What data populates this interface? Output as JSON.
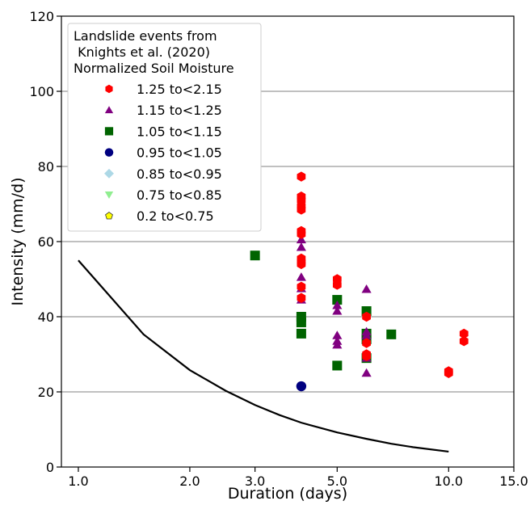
{
  "chart_data": {
    "type": "scatter",
    "xlabel": "Duration (days)",
    "ylabel": "Intensity (mm/d)",
    "x_scale": "log",
    "xlim": [
      0.9,
      15.0
    ],
    "ylim": [
      0,
      120
    ],
    "x_ticks": [
      1.0,
      2.0,
      3.0,
      5.0,
      10.0,
      15.0
    ],
    "x_tick_labels": [
      "1.0",
      "2.0",
      "3.0",
      "5.0",
      "10.0",
      "15.0"
    ],
    "y_ticks": [
      0,
      20,
      40,
      60,
      80,
      100,
      120
    ],
    "y_tick_labels": [
      "0",
      "20",
      "40",
      "60",
      "80",
      "100",
      "120"
    ],
    "grid": "horizontal",
    "legend_position": "top-left",
    "legend_title": [
      "Landslide events from",
      " Knights et al. (2020)",
      "Normalized Soil Moisture"
    ],
    "series": [
      {
        "name": "1.25 to<2.15",
        "marker": "hexagon",
        "color": "#ff0000",
        "points": [
          [
            4,
            77.3
          ],
          [
            4,
            72
          ],
          [
            4,
            71
          ],
          [
            4,
            69.5
          ],
          [
            4,
            68.5
          ],
          [
            4,
            62.8
          ],
          [
            4,
            62
          ],
          [
            4,
            55.5
          ],
          [
            4,
            54.5
          ],
          [
            4,
            54
          ],
          [
            4,
            48
          ],
          [
            4,
            45
          ],
          [
            5,
            50
          ],
          [
            5,
            48.5
          ],
          [
            6,
            40
          ],
          [
            6,
            33
          ],
          [
            6,
            30
          ],
          [
            6,
            29.5
          ],
          [
            10,
            25.5
          ],
          [
            10,
            25
          ],
          [
            11,
            35.5
          ],
          [
            11,
            33.5
          ]
        ]
      },
      {
        "name": "1.15 to<1.25",
        "marker": "triangle-up",
        "color": "#800080",
        "points": [
          [
            4,
            60.5
          ],
          [
            4,
            58.5
          ],
          [
            4,
            50.5
          ],
          [
            4,
            47.5
          ],
          [
            4,
            44.5
          ],
          [
            5,
            43
          ],
          [
            5,
            41.5
          ],
          [
            5,
            35
          ],
          [
            5,
            33.5
          ],
          [
            5,
            32.5
          ],
          [
            6,
            47.3
          ],
          [
            6,
            36
          ],
          [
            6,
            35
          ],
          [
            6,
            29
          ],
          [
            6,
            25
          ]
        ]
      },
      {
        "name": "1.05 to<1.15",
        "marker": "square",
        "color": "#006400",
        "points": [
          [
            3,
            56.3
          ],
          [
            4,
            40
          ],
          [
            4,
            38.5
          ],
          [
            4,
            35.5
          ],
          [
            5,
            44.5
          ],
          [
            5,
            27
          ],
          [
            6,
            41.5
          ],
          [
            6,
            35.5
          ],
          [
            6,
            34
          ],
          [
            6,
            29
          ],
          [
            7,
            35.3
          ]
        ]
      },
      {
        "name": "0.95 to<1.05",
        "marker": "circle",
        "color": "#000080",
        "points": [
          [
            4,
            21.5
          ]
        ]
      },
      {
        "name": "0.85 to<0.95",
        "marker": "diamond",
        "color": "#add8e6",
        "points": []
      },
      {
        "name": "0.75 to<0.85",
        "marker": "triangle-down",
        "color": "#90ee90",
        "points": []
      },
      {
        "name": "0.2 to<0.75",
        "marker": "pentagon",
        "color": "#ffff00",
        "points": []
      }
    ],
    "threshold_line": {
      "color": "#000000",
      "points": [
        [
          1.0,
          55
        ],
        [
          1.5,
          35.3
        ],
        [
          2.0,
          25.8
        ],
        [
          2.5,
          20.3
        ],
        [
          3.0,
          16.5
        ],
        [
          3.5,
          13.8
        ],
        [
          4.0,
          11.8
        ],
        [
          5.0,
          9.2
        ],
        [
          6.0,
          7.5
        ],
        [
          7.0,
          6.2
        ],
        [
          8.0,
          5.3
        ],
        [
          10.0,
          4.1
        ]
      ]
    }
  }
}
